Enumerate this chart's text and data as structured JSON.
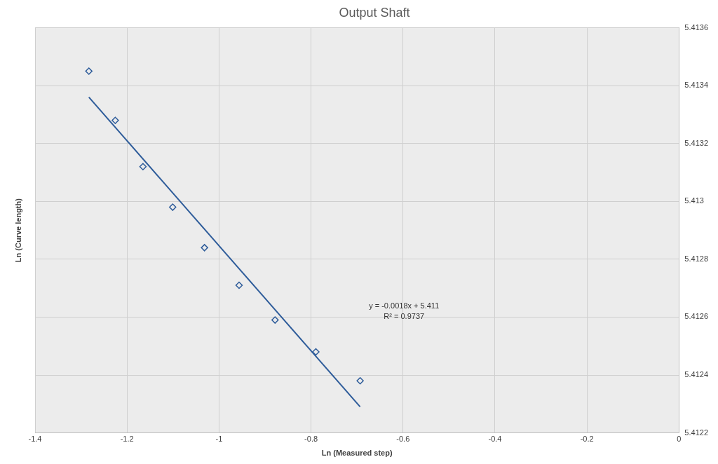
{
  "chart_data": {
    "type": "scatter",
    "title": "Output Shaft",
    "xlabel": "Ln (Measured step)",
    "ylabel": "Ln (Curve length)",
    "annotations": [
      "y = -0.0018x + 5.411",
      "R² = 0.9737"
    ],
    "xlim": [
      -1.4,
      0
    ],
    "xticks": [
      -1.4,
      -1.2,
      -1,
      -0.8,
      -0.6,
      -0.4,
      -0.2,
      0
    ],
    "ylim": [
      5.4122,
      5.4136
    ],
    "yticks": [
      5.4122,
      5.4124,
      5.4126,
      5.4128,
      5.413,
      5.4132,
      5.4134,
      5.4136
    ],
    "grid": true,
    "legend": false,
    "marker": "diamond",
    "series": [
      {
        "type": "scatter",
        "color": "#2e5c9a",
        "x": [
          -1.283,
          -1.2256,
          -1.1654,
          -1.1008,
          -1.0316,
          -0.9564,
          -0.8782,
          -0.7895,
          -0.6932
        ],
        "values": [
          5.41345,
          5.41328,
          5.41312,
          5.41298,
          5.41284,
          5.41271,
          5.41259,
          5.41248,
          5.41238
        ]
      },
      {
        "type": "line",
        "color": "#2e5c9a",
        "marker": "none",
        "line_style": "solid",
        "x": [
          -1.283,
          -0.6932
        ],
        "values": [
          5.41336,
          5.41229
        ]
      }
    ]
  }
}
